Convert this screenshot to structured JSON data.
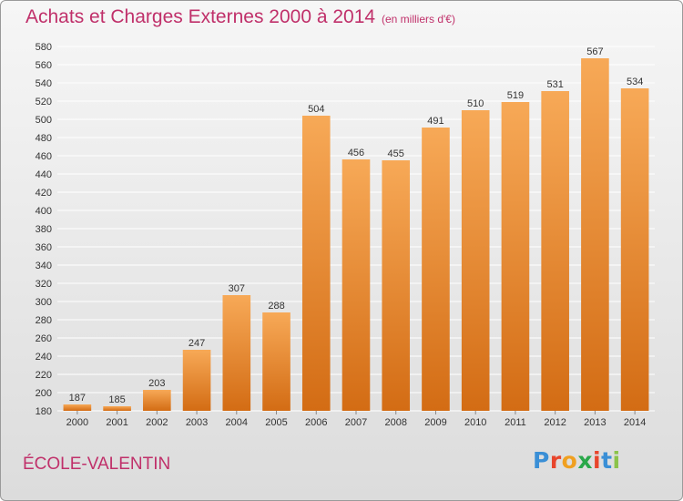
{
  "title": "Achats et Charges Externes 2000 à 2014",
  "subtitle": "(en milliers d'€)",
  "place": "ÉCOLE-VALENTIN",
  "logo": {
    "letters": [
      "P",
      "r",
      "o",
      "x",
      "i",
      "t",
      "i"
    ],
    "colors": [
      "#3a8fd6",
      "#e8452c",
      "#f0a020",
      "#2aa84a",
      "#e8452c",
      "#3a8fd6",
      "#8bc34a"
    ]
  },
  "colors": {
    "bar_light": "#f7a957",
    "bar_dark": "#d36c14",
    "title": "#c0306a"
  },
  "chart_data": {
    "type": "bar",
    "title": "Achats et Charges Externes 2000 à 2014",
    "subtitle": "(en milliers d'€)",
    "categories": [
      "2000",
      "2001",
      "2002",
      "2003",
      "2004",
      "2005",
      "2006",
      "2007",
      "2008",
      "2009",
      "2010",
      "2011",
      "2012",
      "2013",
      "2014"
    ],
    "values": [
      187,
      185,
      203,
      247,
      307,
      288,
      504,
      456,
      455,
      491,
      510,
      519,
      531,
      567,
      534
    ],
    "ylim": [
      180,
      580
    ],
    "ytick_step": 20,
    "grid": true,
    "legend": "none"
  }
}
